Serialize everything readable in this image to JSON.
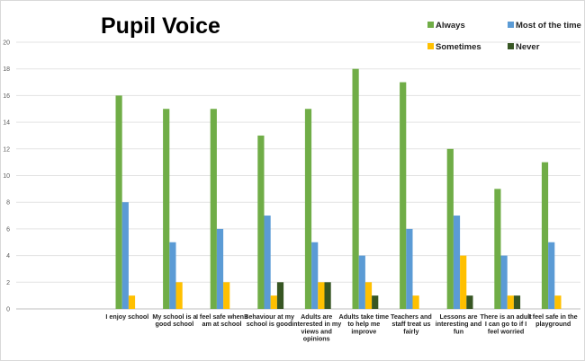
{
  "chart_data": {
    "type": "bar",
    "title": "Pupil Voice",
    "categories": [
      "I enjoy school",
      "My school is a good school",
      "I feel safe when I am at school",
      "Behaviour at my school is good",
      "Adults are interested in my views and opinions",
      "Adults take time to help me improve",
      "Teachers and staff treat us fairly",
      "Lessons are interesting and fun",
      "There is an adult I can go to if I feel worried",
      "I feel safe in the playground"
    ],
    "category_lines": [
      [
        "I enjoy school"
      ],
      [
        "My school is a",
        "good school"
      ],
      [
        "I feel safe when I",
        "am at school"
      ],
      [
        "Behaviour at my",
        "school is good"
      ],
      [
        "Adults are",
        "interested in my",
        "views and",
        "opinions"
      ],
      [
        "Adults take time",
        "to help me",
        "improve"
      ],
      [
        "Teachers and",
        "staff treat us",
        "fairly"
      ],
      [
        "Lessons are",
        "interesting and",
        "fun"
      ],
      [
        "There is an adult",
        "I can go to if I",
        "feel worried"
      ],
      [
        "I feel safe in the",
        "playground"
      ]
    ],
    "series": [
      {
        "name": "Always",
        "color": "#70ad47",
        "values": [
          16,
          15,
          15,
          13,
          15,
          18,
          17,
          12,
          9,
          11
        ]
      },
      {
        "name": "Most of the time",
        "color": "#5b9bd5",
        "values": [
          8,
          5,
          6,
          7,
          5,
          4,
          6,
          7,
          4,
          5
        ]
      },
      {
        "name": "Sometimes",
        "color": "#ffc000",
        "values": [
          1,
          2,
          2,
          1,
          2,
          2,
          1,
          4,
          1,
          1
        ]
      },
      {
        "name": "Never",
        "color": "#375623",
        "values": [
          0,
          0,
          0,
          2,
          2,
          1,
          0,
          1,
          1,
          0
        ]
      }
    ],
    "ylim": [
      0,
      20
    ],
    "yticks": [
      0,
      2,
      4,
      6,
      8,
      10,
      12,
      14,
      16,
      18,
      20
    ],
    "grid": true,
    "legend_position": "top-right"
  }
}
